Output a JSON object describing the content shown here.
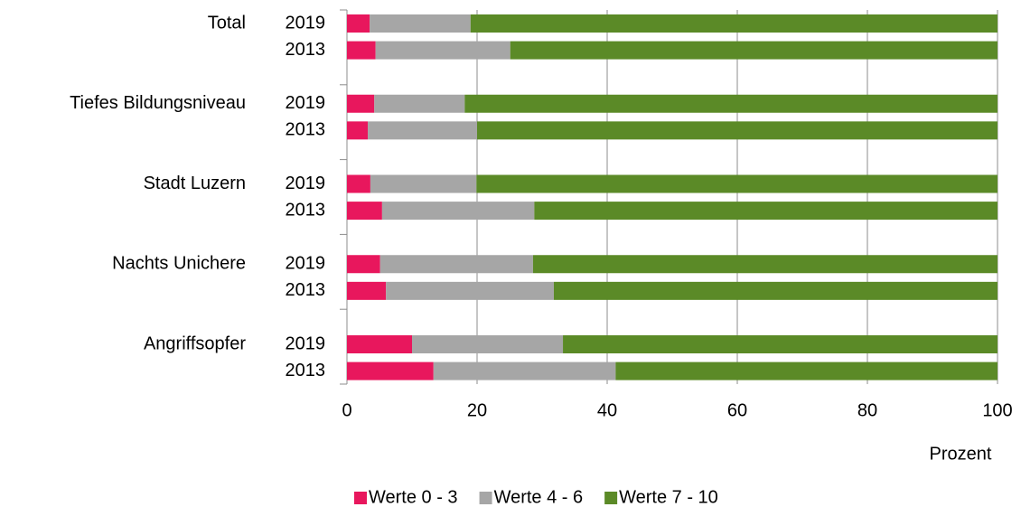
{
  "chart_data": {
    "type": "stacked-barh",
    "groups": [
      "Total",
      "Tiefes Bildungsniveau",
      "Stadt Luzern",
      "Nachts Unichere",
      "Angriffsopfer"
    ],
    "categories": [
      "2019",
      "2013",
      "2019",
      "2013",
      "2019",
      "2013",
      "2019",
      "2013",
      "2019",
      "2013"
    ],
    "series": [
      {
        "name": "Werte 0 - 3",
        "color": "#e8175d",
        "values": [
          3.5,
          4.4,
          4.2,
          3.2,
          3.6,
          5.4,
          5.1,
          6,
          10,
          13.3
        ]
      },
      {
        "name": "Werte 4 - 6",
        "color": "#a6a6a6",
        "values": [
          15.5,
          20.7,
          13.9,
          16.8,
          16.3,
          23.4,
          23.5,
          25.8,
          23.2,
          28
        ]
      },
      {
        "name": "Werte 7 - 10",
        "color": "#5b8a27",
        "values": [
          81,
          74.9,
          81.9,
          80,
          80.1,
          71.2,
          71.4,
          68.2,
          66.8,
          58.7
        ]
      }
    ],
    "x_label": "Prozent",
    "xlim": [
      0,
      100
    ],
    "xticks": [
      0,
      20,
      40,
      60,
      80,
      100
    ],
    "grid": true,
    "legend": "bottom"
  }
}
